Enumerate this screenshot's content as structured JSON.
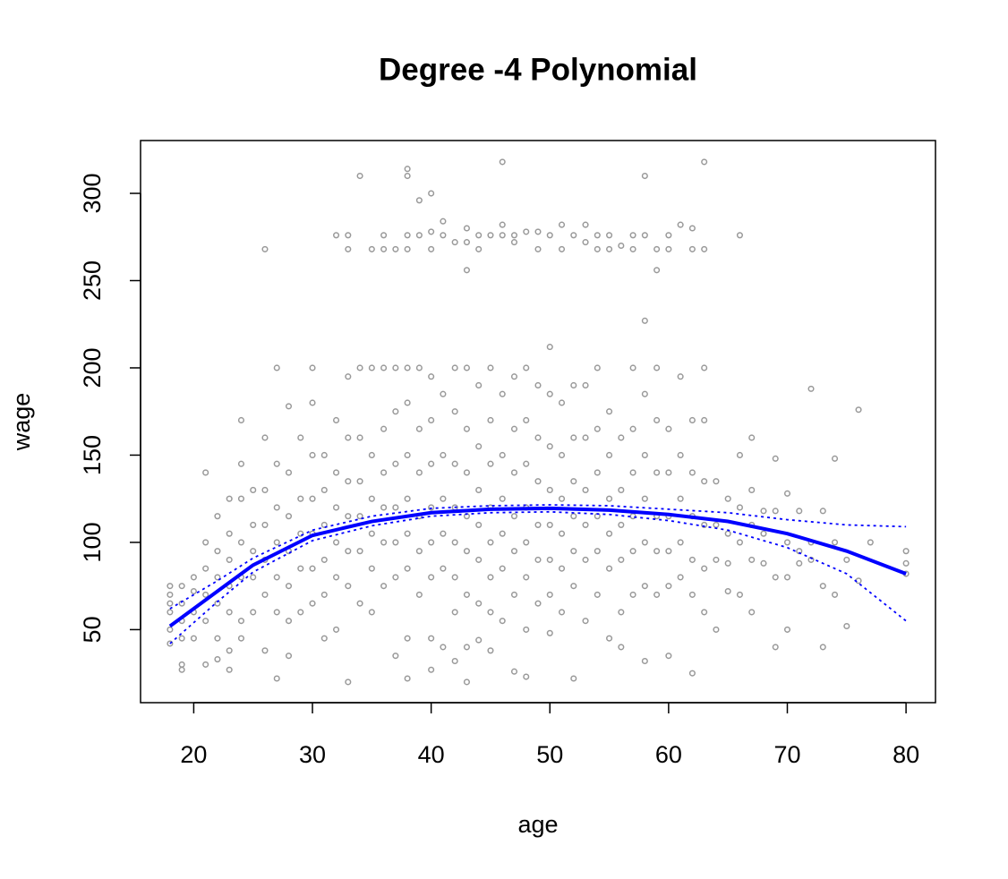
{
  "chart_data": {
    "type": "scatter",
    "title": "Degree -4 Polynomial",
    "xlabel": "age",
    "ylabel": "wage",
    "xlim": [
      15.52,
      82.48
    ],
    "ylim": [
      8.15,
      330.27
    ],
    "xticks": [
      20,
      30,
      40,
      50,
      60,
      70,
      80
    ],
    "yticks": [
      50,
      100,
      150,
      200,
      250,
      300
    ],
    "series": [
      {
        "style": "points",
        "color": "#999999",
        "x": [
          18,
          18,
          18,
          18,
          18,
          18,
          19,
          19,
          19,
          19,
          19,
          19,
          20,
          20,
          20,
          20,
          21,
          21,
          21,
          21,
          21,
          21,
          22,
          22,
          22,
          22,
          22,
          22,
          23,
          23,
          23,
          23,
          23,
          23,
          23,
          24,
          24,
          24,
          24,
          24,
          24,
          24,
          25,
          25,
          25,
          25,
          25,
          26,
          26,
          26,
          26,
          26,
          26,
          26,
          27,
          27,
          27,
          27,
          27,
          27,
          27,
          28,
          28,
          28,
          28,
          28,
          28,
          28,
          29,
          29,
          29,
          29,
          29,
          30,
          30,
          30,
          30,
          30,
          30,
          30,
          31,
          31,
          31,
          31,
          31,
          31,
          32,
          32,
          32,
          32,
          32,
          32,
          32,
          33,
          33,
          33,
          33,
          33,
          33,
          33,
          33,
          33,
          34,
          34,
          34,
          34,
          34,
          34,
          34,
          35,
          35,
          35,
          35,
          35,
          35,
          35,
          36,
          36,
          36,
          36,
          36,
          36,
          36,
          36,
          37,
          37,
          37,
          37,
          37,
          37,
          37,
          37,
          38,
          38,
          38,
          38,
          38,
          38,
          38,
          38,
          38,
          38,
          38,
          38,
          39,
          39,
          39,
          39,
          39,
          39,
          39,
          39,
          40,
          40,
          40,
          40,
          40,
          40,
          40,
          40,
          40,
          40,
          40,
          41,
          41,
          41,
          41,
          41,
          41,
          41,
          41,
          42,
          42,
          42,
          42,
          42,
          42,
          42,
          42,
          42,
          43,
          43,
          43,
          43,
          43,
          43,
          43,
          43,
          43,
          43,
          43,
          44,
          44,
          44,
          44,
          44,
          44,
          44,
          44,
          44,
          45,
          45,
          45,
          45,
          45,
          45,
          45,
          45,
          45,
          46,
          46,
          46,
          46,
          46,
          46,
          46,
          46,
          46,
          47,
          47,
          47,
          47,
          47,
          47,
          47,
          47,
          47,
          48,
          48,
          48,
          48,
          48,
          48,
          48,
          48,
          48,
          49,
          49,
          49,
          49,
          49,
          49,
          49,
          49,
          50,
          50,
          50,
          50,
          50,
          50,
          50,
          50,
          50,
          51,
          51,
          51,
          51,
          51,
          51,
          51,
          51,
          52,
          52,
          52,
          52,
          52,
          52,
          52,
          52,
          53,
          53,
          53,
          53,
          53,
          53,
          53,
          53,
          54,
          54,
          54,
          54,
          54,
          54,
          54,
          54,
          55,
          55,
          55,
          55,
          55,
          55,
          55,
          55,
          56,
          56,
          56,
          56,
          56,
          56,
          56,
          57,
          57,
          57,
          57,
          57,
          57,
          57,
          57,
          58,
          58,
          58,
          58,
          58,
          58,
          58,
          58,
          58,
          59,
          59,
          59,
          59,
          59,
          59,
          59,
          59,
          60,
          60,
          60,
          60,
          60,
          60,
          60,
          60,
          61,
          61,
          61,
          61,
          61,
          61,
          62,
          62,
          62,
          62,
          62,
          62,
          62,
          62,
          63,
          63,
          63,
          63,
          63,
          63,
          63,
          63,
          64,
          64,
          64,
          64,
          65,
          65,
          65,
          65,
          66,
          66,
          66,
          66,
          66,
          67,
          67,
          67,
          67,
          67,
          68,
          68,
          68,
          69,
          69,
          69,
          69,
          70,
          70,
          70,
          70,
          71,
          71,
          71,
          72,
          72,
          72,
          73,
          73,
          73,
          74,
          74,
          74,
          75,
          75,
          76,
          76,
          77,
          80,
          80,
          80
        ],
        "values": [
          75,
          70,
          65,
          60,
          50,
          42,
          75,
          65,
          55,
          45,
          30,
          27,
          80,
          72,
          60,
          45,
          140,
          100,
          85,
          70,
          55,
          30,
          115,
          95,
          80,
          65,
          45,
          33,
          125,
          105,
          90,
          75,
          60,
          38,
          27,
          170,
          145,
          125,
          100,
          80,
          55,
          45,
          130,
          110,
          95,
          80,
          60,
          268,
          160,
          130,
          110,
          90,
          70,
          38,
          200,
          145,
          120,
          100,
          80,
          60,
          22,
          178,
          140,
          115,
          95,
          75,
          55,
          35,
          160,
          125,
          105,
          85,
          60,
          200,
          180,
          150,
          125,
          105,
          85,
          65,
          150,
          130,
          110,
          90,
          70,
          45,
          276,
          170,
          140,
          120,
          100,
          80,
          50,
          276,
          268,
          195,
          160,
          135,
          115,
          95,
          75,
          20,
          310,
          200,
          160,
          135,
          115,
          95,
          65,
          268,
          200,
          150,
          125,
          105,
          85,
          60,
          276,
          268,
          200,
          165,
          140,
          120,
          100,
          75,
          268,
          200,
          175,
          145,
          120,
          100,
          80,
          35,
          314,
          310,
          276,
          268,
          200,
          180,
          150,
          125,
          105,
          85,
          45,
          22,
          296,
          276,
          200,
          165,
          140,
          115,
          95,
          70,
          300,
          278,
          268,
          195,
          170,
          145,
          120,
          100,
          80,
          45,
          27,
          284,
          276,
          185,
          150,
          125,
          105,
          85,
          40,
          272,
          200,
          175,
          145,
          120,
          100,
          80,
          60,
          32,
          280,
          272,
          256,
          200,
          165,
          140,
          115,
          95,
          70,
          20,
          40,
          276,
          268,
          190,
          155,
          130,
          110,
          90,
          65,
          44,
          276,
          200,
          170,
          145,
          120,
          100,
          80,
          60,
          38,
          318,
          282,
          276,
          185,
          150,
          125,
          105,
          85,
          55,
          276,
          272,
          195,
          165,
          140,
          115,
          95,
          70,
          26,
          278,
          200,
          170,
          145,
          120,
          100,
          80,
          50,
          23,
          278,
          268,
          190,
          160,
          135,
          110,
          90,
          65,
          276,
          212,
          185,
          155,
          130,
          110,
          90,
          70,
          48,
          282,
          268,
          180,
          150,
          125,
          105,
          85,
          60,
          276,
          190,
          160,
          135,
          115,
          95,
          75,
          22,
          282,
          272,
          190,
          160,
          130,
          110,
          90,
          55,
          276,
          268,
          200,
          165,
          140,
          115,
          95,
          70,
          276,
          268,
          175,
          150,
          125,
          105,
          85,
          45,
          270,
          160,
          130,
          110,
          90,
          60,
          40,
          276,
          268,
          200,
          165,
          140,
          115,
          95,
          70,
          310,
          276,
          227,
          185,
          150,
          125,
          100,
          75,
          32,
          256,
          268,
          200,
          170,
          140,
          115,
          95,
          70,
          276,
          268,
          165,
          140,
          115,
          95,
          75,
          35,
          282,
          195,
          150,
          125,
          100,
          80,
          280,
          268,
          170,
          140,
          115,
          90,
          70,
          25,
          318,
          268,
          200,
          170,
          135,
          110,
          85,
          60,
          135,
          110,
          90,
          50,
          125,
          105,
          88,
          72,
          276,
          150,
          120,
          100,
          70,
          160,
          130,
          110,
          90,
          60,
          118,
          105,
          88,
          148,
          118,
          80,
          40,
          128,
          100,
          80,
          50,
          118,
          95,
          88,
          188,
          100,
          90,
          118,
          75,
          40,
          148,
          100,
          70,
          90,
          52,
          176,
          78,
          100,
          95,
          88,
          82
        ]
      },
      {
        "style": "solid",
        "color": "#0000ff",
        "x": [
          18,
          20,
          22,
          25,
          30,
          35,
          40,
          45,
          50,
          55,
          60,
          65,
          70,
          75,
          80
        ],
        "values": [
          52,
          62,
          72,
          87,
          104,
          112,
          117,
          119,
          119.5,
          118.5,
          116,
          112,
          105,
          95,
          82
        ]
      },
      {
        "style": "dotted",
        "color": "#0000ff",
        "x": [
          18,
          20,
          22,
          25,
          30,
          35,
          40,
          45,
          50,
          55,
          60,
          65,
          70,
          75,
          80
        ],
        "values": [
          62,
          70,
          78,
          91,
          107,
          115,
          119.5,
          121,
          121.5,
          121,
          119,
          117,
          113,
          110,
          109
        ]
      },
      {
        "style": "dotted",
        "color": "#0000ff",
        "x": [
          18,
          20,
          22,
          25,
          30,
          35,
          40,
          45,
          50,
          55,
          60,
          65,
          70,
          75,
          80
        ],
        "values": [
          42,
          54,
          66,
          83,
          101,
          109.5,
          115,
          117,
          117.5,
          116,
          112.5,
          107,
          97,
          82,
          55
        ]
      }
    ]
  }
}
